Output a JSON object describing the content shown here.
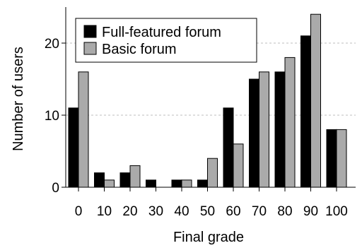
{
  "chart_data": {
    "type": "bar",
    "title": "",
    "xlabel": "Final grade",
    "ylabel": "Number of users",
    "categories": [
      "0",
      "10",
      "20",
      "30",
      "40",
      "50",
      "60",
      "70",
      "80",
      "90",
      "100"
    ],
    "series": [
      {
        "name": "Full-featured forum",
        "color": "#000000",
        "values": [
          11,
          2,
          2,
          1,
          1,
          1,
          11,
          15,
          16,
          21,
          8
        ]
      },
      {
        "name": "Basic forum",
        "color": "#aaaaaa",
        "values": [
          16,
          1,
          3,
          0,
          1,
          4,
          6,
          16,
          18,
          24,
          8
        ]
      }
    ],
    "yticks": [
      0,
      10,
      20
    ],
    "ylim": [
      0,
      25
    ],
    "grid": "horizontal dashed",
    "legend_position": "top-left"
  }
}
